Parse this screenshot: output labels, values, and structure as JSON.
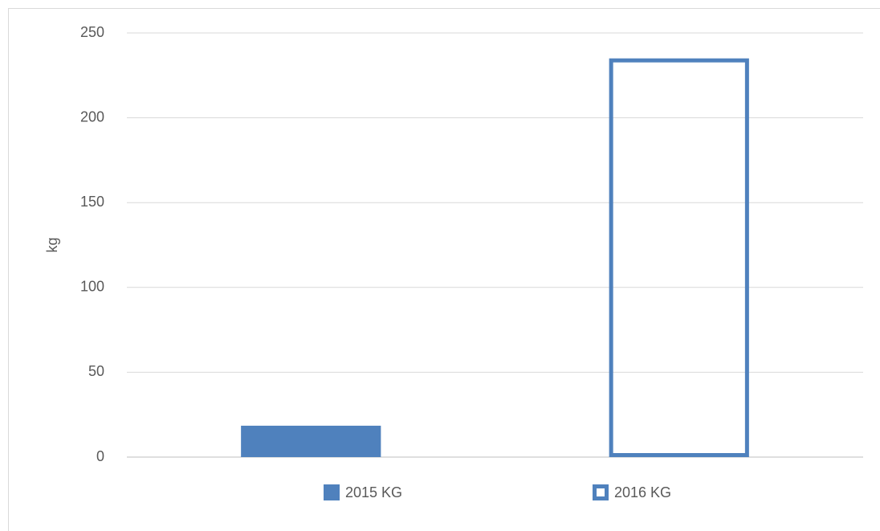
{
  "chart_data": {
    "type": "bar",
    "y_label": "kg",
    "categories": [
      null,
      null
    ],
    "series": [
      {
        "name": "2015 KG",
        "color": "#4f81bd",
        "filled": true,
        "values": [
          18.5,
          null
        ]
      },
      {
        "name": "2016 KG",
        "color": "#4f81bd",
        "filled": false,
        "values": [
          null,
          235
        ]
      }
    ],
    "ylim": [
      0,
      250
    ],
    "yticks": [
      0,
      50,
      100,
      150,
      200,
      250
    ],
    "grid": true,
    "legend": "bottom"
  }
}
